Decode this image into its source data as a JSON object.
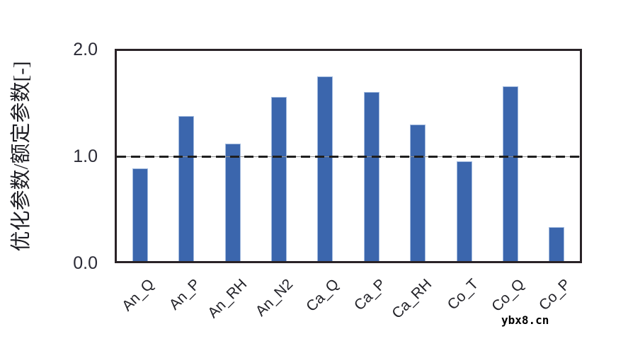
{
  "chart_data": {
    "type": "bar",
    "title": "",
    "categories": [
      "An_Q",
      "An_P",
      "An_RH",
      "An_N2",
      "Ca_Q",
      "Ca_P",
      "Ca_RH",
      "Co_T",
      "Co_Q",
      "Co_P"
    ],
    "values": [
      0.88,
      1.38,
      1.12,
      1.56,
      1.76,
      1.61,
      1.3,
      0.95,
      1.66,
      0.32
    ],
    "xlabel": "",
    "ylabel": "优化参数/额定参数[-]",
    "ylim": [
      0.0,
      2.0
    ],
    "yticks": [
      {
        "label": "0.0",
        "value": 0.0
      },
      {
        "label": "1.0",
        "value": 1.0
      },
      {
        "label": "2.0",
        "value": 2.0
      }
    ],
    "reference_line": {
      "value": 1.0,
      "style": "dashed",
      "color": "#1f1f1f"
    },
    "grid": false,
    "legend_position": "none",
    "bar_color": "#3b66ad",
    "bar_edge_color": "#a3bbdf"
  },
  "watermark": {
    "text": "ybx8.cn"
  }
}
